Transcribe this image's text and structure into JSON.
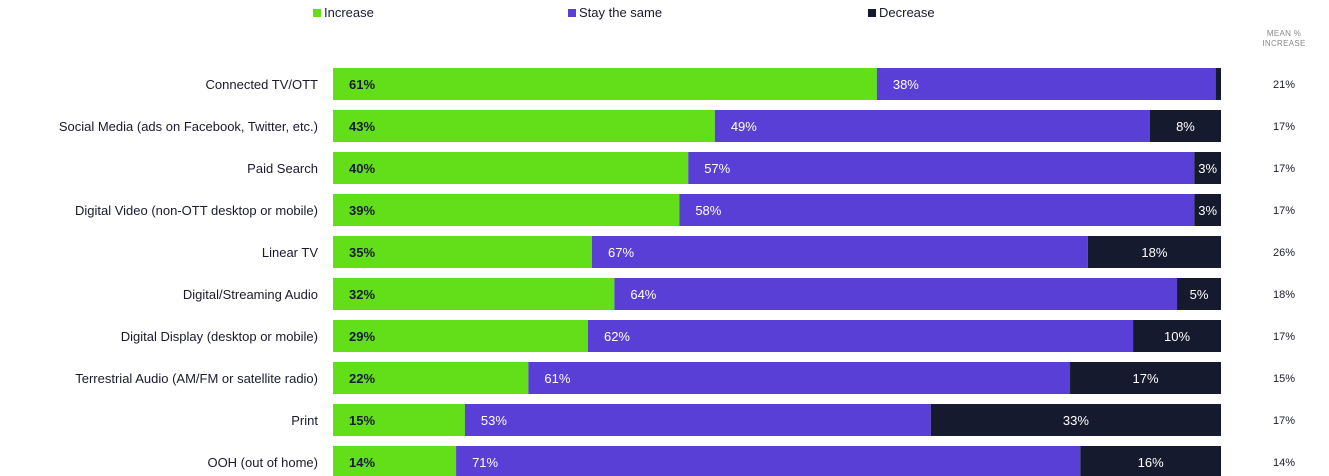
{
  "chart_data": {
    "type": "bar",
    "orientation": "horizontal-stacked",
    "title": "",
    "xlabel": "",
    "ylabel": "",
    "legend_position": "top",
    "mean_column_header": [
      "MEAN %",
      "INCREASE"
    ],
    "categories": [
      "Connected TV/OTT",
      "Social Media (ads on Facebook, Twitter, etc.)",
      "Paid Search",
      "Digital Video (non-OTT desktop or mobile)",
      "Linear TV",
      "Digital/Streaming Audio",
      "Digital Display (desktop or mobile)",
      "Terrestrial Audio (AM/FM or satellite radio)",
      "Print",
      "OOH (out of home)"
    ],
    "series": [
      {
        "name": "Increase",
        "color": "#62df18",
        "label_color": "#1a1a2e",
        "values": [
          61,
          43,
          40,
          39,
          35,
          32,
          29,
          22,
          15,
          14
        ],
        "labels": [
          "61%",
          "43%",
          "40%",
          "39%",
          "35%",
          "32%",
          "29%",
          "22%",
          "15%",
          "14%"
        ]
      },
      {
        "name": "Stay the same",
        "color": "#5a3fd6",
        "label_color": "#ffffff",
        "values": [
          38,
          49,
          57,
          58,
          67,
          64,
          62,
          61,
          53,
          71
        ],
        "labels": [
          "38%",
          "49%",
          "57%",
          "58%",
          "67%",
          "64%",
          "62%",
          "61%",
          "53%",
          "71%"
        ]
      },
      {
        "name": "Decrease",
        "color": "#161a2e",
        "label_color": "#ffffff",
        "values": [
          0.6,
          8,
          3,
          3,
          18,
          5,
          10,
          17,
          33,
          16
        ],
        "labels": [
          "",
          "8%",
          "3%",
          "3%",
          "18%",
          "5%",
          "10%",
          "17%",
          "33%",
          "16%"
        ]
      }
    ],
    "mean_increase": [
      "21%",
      "17%",
      "17%",
      "17%",
      "26%",
      "18%",
      "17%",
      "15%",
      "17%",
      "14%"
    ]
  }
}
